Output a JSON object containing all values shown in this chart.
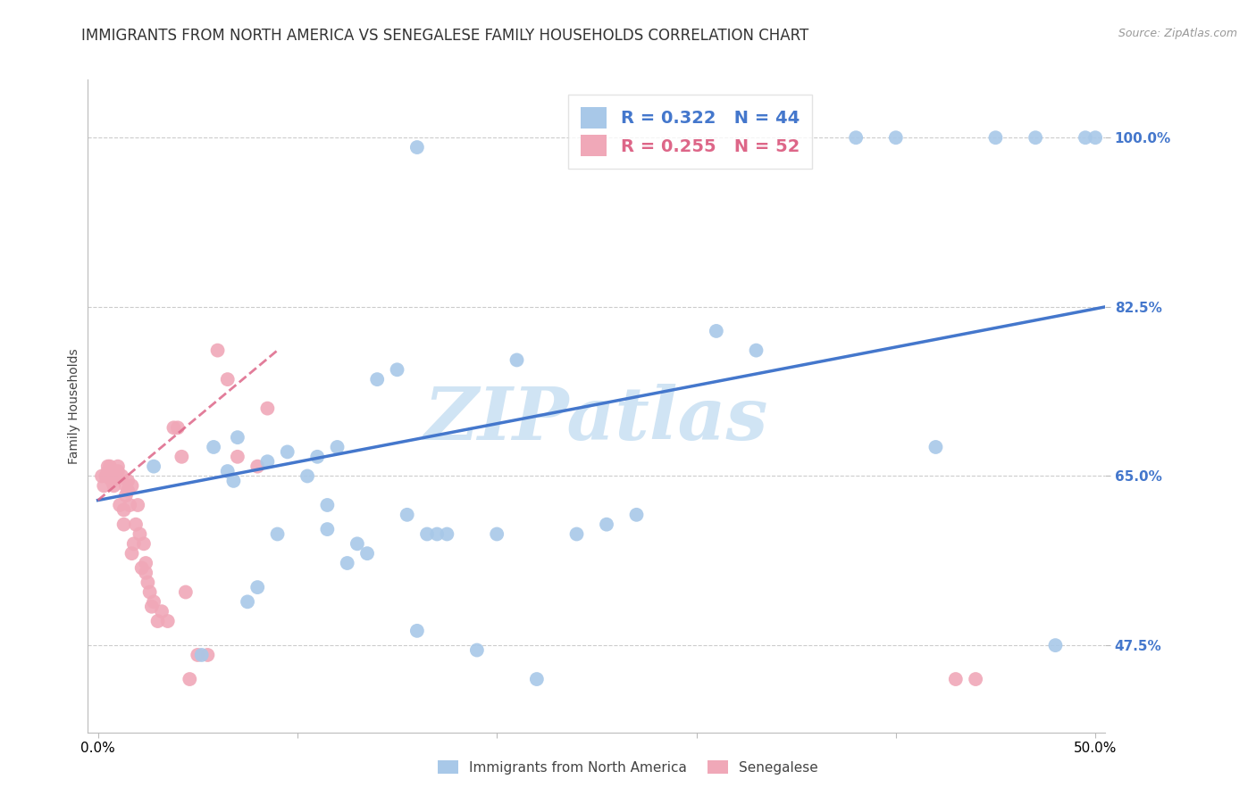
{
  "title": "IMMIGRANTS FROM NORTH AMERICA VS SENEGALESE FAMILY HOUSEHOLDS CORRELATION CHART",
  "source": "Source: ZipAtlas.com",
  "ylabel": "Family Households",
  "legend_label_blue": "Immigrants from North America",
  "legend_label_pink": "Senegalese",
  "R_blue": 0.322,
  "N_blue": 44,
  "R_pink": 0.255,
  "N_pink": 52,
  "xlim": [
    -0.005,
    0.505
  ],
  "ylim": [
    0.385,
    1.06
  ],
  "yticks": [
    0.475,
    0.65,
    0.825,
    1.0
  ],
  "ytick_labels": [
    "47.5%",
    "65.0%",
    "82.5%",
    "100.0%"
  ],
  "xticks": [
    0.0,
    0.1,
    0.2,
    0.3,
    0.4,
    0.5
  ],
  "color_blue": "#a8c8e8",
  "color_pink": "#f0a8b8",
  "color_blue_line": "#4477cc",
  "color_pink_line": "#dd6688",
  "watermark": "ZIPatlas",
  "watermark_color": "#d0e4f4",
  "title_fontsize": 12,
  "axis_label_fontsize": 10,
  "tick_fontsize": 11,
  "legend_fontsize": 14,
  "blue_x": [
    0.028,
    0.052,
    0.058,
    0.065,
    0.068,
    0.07,
    0.075,
    0.08,
    0.085,
    0.09,
    0.095,
    0.105,
    0.11,
    0.115,
    0.115,
    0.12,
    0.125,
    0.13,
    0.135,
    0.14,
    0.15,
    0.155,
    0.16,
    0.165,
    0.17,
    0.175,
    0.19,
    0.2,
    0.21,
    0.22,
    0.24,
    0.255,
    0.27,
    0.31,
    0.33,
    0.38,
    0.4,
    0.42,
    0.45,
    0.47,
    0.48,
    0.495,
    0.5,
    0.16
  ],
  "blue_y": [
    0.66,
    0.465,
    0.68,
    0.655,
    0.645,
    0.69,
    0.52,
    0.535,
    0.665,
    0.59,
    0.675,
    0.65,
    0.67,
    0.62,
    0.595,
    0.68,
    0.56,
    0.58,
    0.57,
    0.75,
    0.76,
    0.61,
    0.49,
    0.59,
    0.59,
    0.59,
    0.47,
    0.59,
    0.77,
    0.44,
    0.59,
    0.6,
    0.61,
    0.8,
    0.78,
    1.0,
    1.0,
    0.68,
    1.0,
    1.0,
    0.475,
    1.0,
    1.0,
    0.99
  ],
  "pink_x": [
    0.002,
    0.003,
    0.004,
    0.005,
    0.005,
    0.006,
    0.007,
    0.007,
    0.008,
    0.009,
    0.01,
    0.01,
    0.011,
    0.012,
    0.013,
    0.013,
    0.014,
    0.014,
    0.015,
    0.015,
    0.016,
    0.017,
    0.017,
    0.018,
    0.019,
    0.02,
    0.021,
    0.022,
    0.023,
    0.024,
    0.024,
    0.025,
    0.026,
    0.027,
    0.028,
    0.03,
    0.032,
    0.035,
    0.038,
    0.04,
    0.042,
    0.044,
    0.046,
    0.05,
    0.055,
    0.06,
    0.065,
    0.07,
    0.08,
    0.085,
    0.43,
    0.44
  ],
  "pink_y": [
    0.65,
    0.64,
    0.65,
    0.66,
    0.655,
    0.66,
    0.65,
    0.645,
    0.64,
    0.65,
    0.655,
    0.66,
    0.62,
    0.65,
    0.6,
    0.615,
    0.63,
    0.64,
    0.635,
    0.645,
    0.62,
    0.57,
    0.64,
    0.58,
    0.6,
    0.62,
    0.59,
    0.555,
    0.58,
    0.55,
    0.56,
    0.54,
    0.53,
    0.515,
    0.52,
    0.5,
    0.51,
    0.5,
    0.7,
    0.7,
    0.67,
    0.53,
    0.44,
    0.465,
    0.465,
    0.78,
    0.75,
    0.67,
    0.66,
    0.72,
    0.44,
    0.44
  ],
  "blue_line_x0": 0.0,
  "blue_line_x1": 0.505,
  "blue_line_y0": 0.625,
  "blue_line_y1": 0.825,
  "pink_line_x0": 0.0,
  "pink_line_x1": 0.09,
  "pink_line_y0": 0.625,
  "pink_line_y1": 0.78
}
